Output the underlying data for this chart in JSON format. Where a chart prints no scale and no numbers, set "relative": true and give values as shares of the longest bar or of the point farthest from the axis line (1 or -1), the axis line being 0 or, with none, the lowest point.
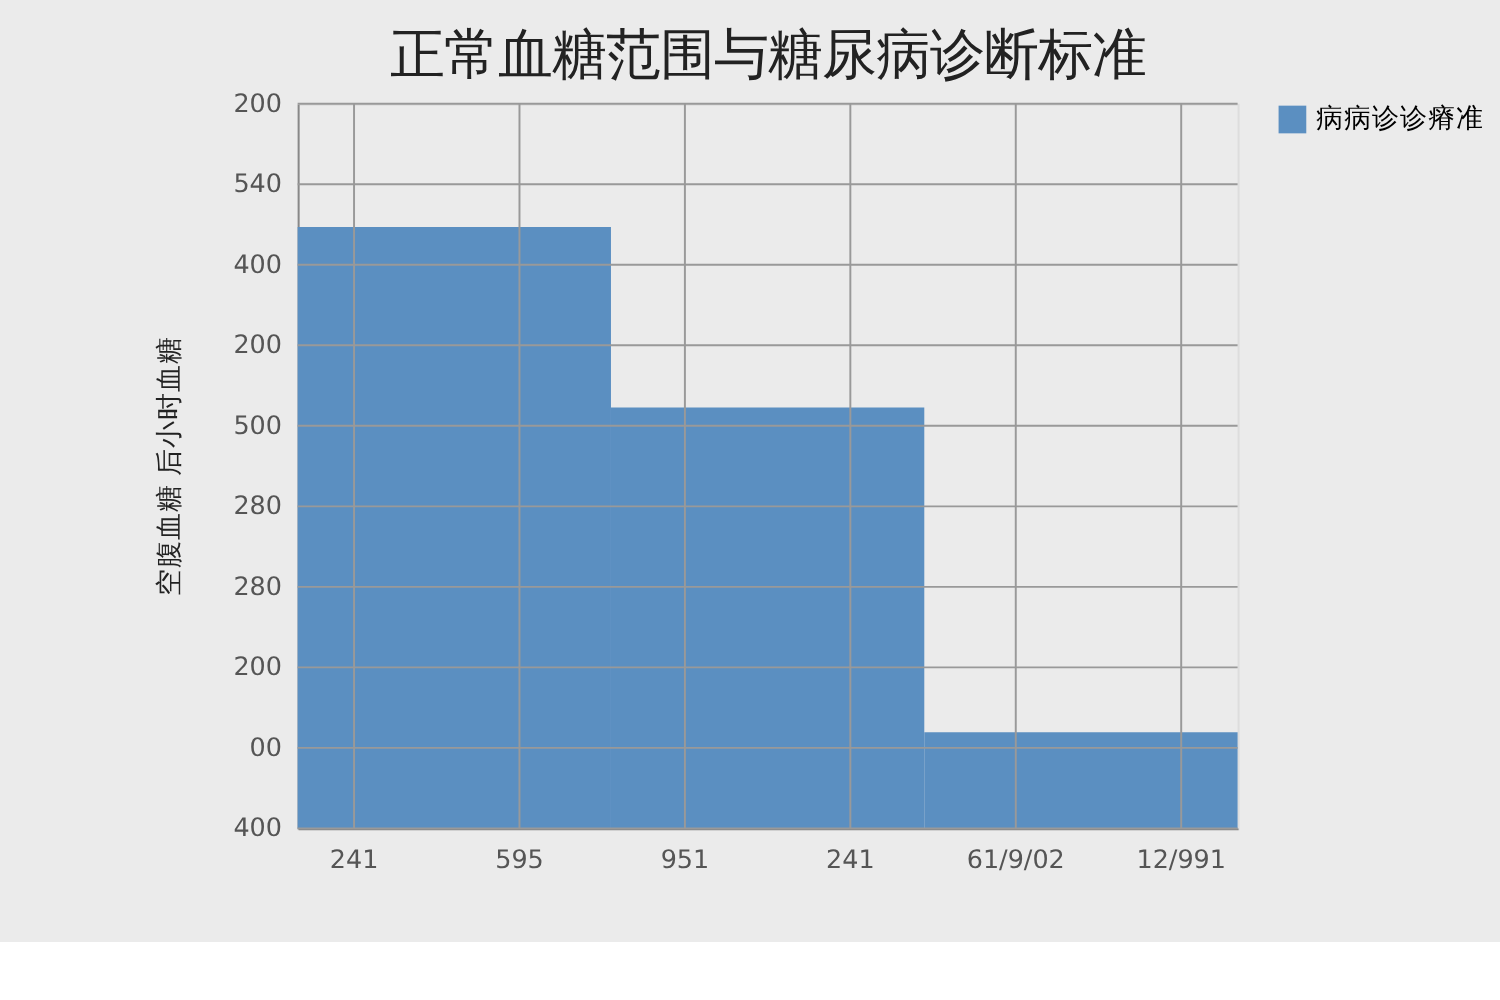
{
  "chart_data": {
    "type": "bar",
    "relative": true,
    "title": "正常血糖范围与糖尿病诊断标准",
    "ylabel": "空腹血糖 后小时血糖",
    "categories": [
      null,
      null,
      null
    ],
    "series": [
      {
        "name": "病病诊诊瘠准",
        "color": "#5b8fc1",
        "values": [
          1,
          0.7,
          0.16
        ]
      }
    ],
    "annotations": [
      "400",
      "00",
      "200",
      "280",
      "280",
      "500",
      "200",
      "400",
      "540",
      "200",
      "241",
      "595",
      "951",
      "241",
      "61/9/02",
      "12/991"
    ],
    "grid": true,
    "legend": "right"
  }
}
